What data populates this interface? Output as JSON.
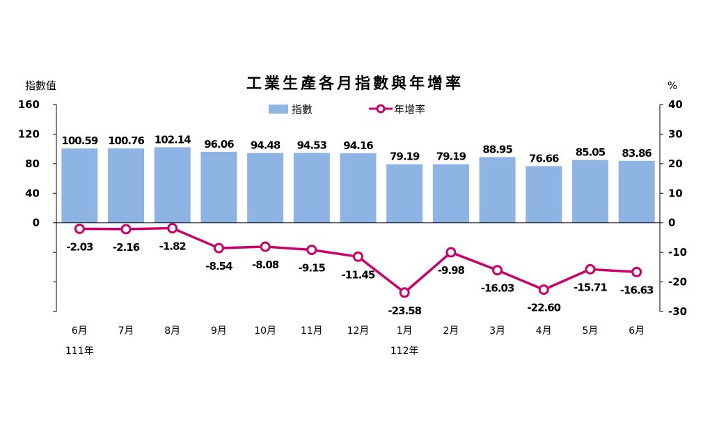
{
  "chart_data": {
    "type": "bar",
    "title": "工業生產各月指數與年增率",
    "ylabel_left": "指數值",
    "ylabel_right": "%",
    "categories": [
      "6月",
      "7月",
      "8月",
      "9月",
      "10月",
      "11月",
      "12月",
      "1月",
      "2月",
      "3月",
      "4月",
      "5月",
      "6月"
    ],
    "year_labels": [
      {
        "index": 0,
        "label": "111年"
      },
      {
        "index": 7,
        "label": "112年"
      }
    ],
    "series": [
      {
        "name": "指數",
        "type": "bar",
        "axis": "left",
        "color": "#8db4e2",
        "values": [
          100.59,
          100.76,
          102.14,
          96.06,
          94.48,
          94.53,
          94.16,
          79.19,
          79.19,
          88.95,
          76.66,
          85.05,
          83.86
        ],
        "labels": [
          "100.59",
          "100.76",
          "102.14",
          "96.06",
          "94.48",
          "94.53",
          "94.16",
          "79.19",
          "79.19",
          "88.95",
          "76.66",
          "85.05",
          "83.86"
        ]
      },
      {
        "name": "年增率",
        "type": "line",
        "axis": "right",
        "color": "#cc0066",
        "values": [
          -2.03,
          -2.16,
          -1.82,
          -8.54,
          -8.08,
          -9.15,
          -11.45,
          -23.58,
          -9.98,
          -16.03,
          -22.6,
          -15.71,
          -16.63
        ],
        "labels": [
          "-2.03",
          "-2.16",
          "-1.82",
          "-8.54",
          "-8.08",
          "-9.15",
          "-11.45",
          "-23.58",
          "-9.98",
          "-16.03",
          "-22.60",
          "-15.71",
          "-16.63"
        ]
      }
    ],
    "left_axis": {
      "ylim": [
        -120,
        160
      ],
      "ticks": [
        0,
        40,
        80,
        120,
        160
      ],
      "tick_labels": [
        "0",
        "40",
        "80",
        "120",
        "160"
      ]
    },
    "right_axis": {
      "ylim": [
        -30,
        40
      ],
      "ticks": [
        -30,
        -20,
        -10,
        0,
        10,
        20,
        30,
        40
      ],
      "tick_labels": [
        "-30",
        "-20",
        "-10",
        "0",
        "10",
        "20",
        "30",
        "40"
      ]
    },
    "legend_position": "top-center",
    "grid": false
  }
}
